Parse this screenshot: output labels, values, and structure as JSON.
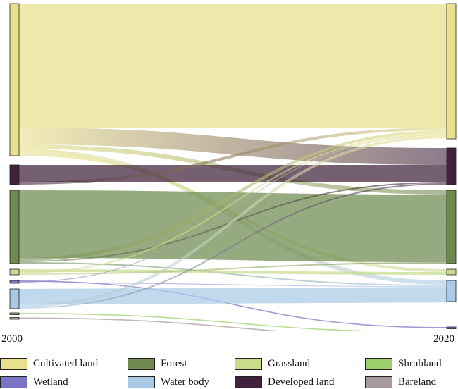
{
  "years": {
    "left": "2000",
    "right": "2020"
  },
  "colors": {
    "cultivated": "#e8e08a",
    "forest": "#6e8a4e",
    "grassland": "#c8dc8c",
    "shrubland": "#9cd06c",
    "wetland": "#7b74c4",
    "water": "#a9c9e6",
    "developed": "#40223c",
    "bareland": "#a89a9c"
  },
  "legend": [
    {
      "key": "cultivated",
      "label": "Cultivated land"
    },
    {
      "key": "forest",
      "label": "Forest"
    },
    {
      "key": "grassland",
      "label": "Grassland"
    },
    {
      "key": "shrubland",
      "label": "Shrubland"
    },
    {
      "key": "wetland",
      "label": "Wetland"
    },
    {
      "key": "water",
      "label": "Water body"
    },
    {
      "key": "developed",
      "label": "Developed land"
    },
    {
      "key": "bareland",
      "label": "Bareland"
    }
  ],
  "chart_data": {
    "type": "sankey",
    "nodes_2000": [
      {
        "key": "cultivated",
        "value": 54
      },
      {
        "key": "developed",
        "value": 7
      },
      {
        "key": "forest",
        "value": 26
      },
      {
        "key": "grassland",
        "value": 2
      },
      {
        "key": "wetland",
        "value": 1
      },
      {
        "key": "water",
        "value": 7
      },
      {
        "key": "shrubland",
        "value": 0.4
      },
      {
        "key": "bareland",
        "value": 0.4
      }
    ],
    "nodes_2020": [
      {
        "key": "cultivated",
        "value": 48
      },
      {
        "key": "developed",
        "value": 13
      },
      {
        "key": "forest",
        "value": 26
      },
      {
        "key": "grassland",
        "value": 2
      },
      {
        "key": "water",
        "value": 7.5
      },
      {
        "key": "wetland",
        "value": 0.4
      },
      {
        "key": "shrubland",
        "value": 0.4
      },
      {
        "key": "bareland",
        "value": 0.4
      }
    ],
    "flows": [
      {
        "from": "cultivated",
        "to": "cultivated",
        "value": 44
      },
      {
        "from": "cultivated",
        "to": "developed",
        "value": 6
      },
      {
        "from": "cultivated",
        "to": "forest",
        "value": 1.5
      },
      {
        "from": "cultivated",
        "to": "water",
        "value": 1.5
      },
      {
        "from": "cultivated",
        "to": "grassland",
        "value": 1
      },
      {
        "from": "developed",
        "to": "developed",
        "value": 6
      },
      {
        "from": "developed",
        "to": "cultivated",
        "value": 1
      },
      {
        "from": "forest",
        "to": "forest",
        "value": 24
      },
      {
        "from": "forest",
        "to": "cultivated",
        "value": 1
      },
      {
        "from": "forest",
        "to": "developed",
        "value": 0.5
      },
      {
        "from": "forest",
        "to": "water",
        "value": 0.5
      },
      {
        "from": "grassland",
        "to": "grassland",
        "value": 1
      },
      {
        "from": "grassland",
        "to": "cultivated",
        "value": 0.5
      },
      {
        "from": "grassland",
        "to": "forest",
        "value": 0.5
      },
      {
        "from": "wetland",
        "to": "wetland",
        "value": 0.4
      },
      {
        "from": "wetland",
        "to": "cultivated",
        "value": 0.3
      },
      {
        "from": "wetland",
        "to": "water",
        "value": 0.3
      },
      {
        "from": "water",
        "to": "water",
        "value": 5.5
      },
      {
        "from": "water",
        "to": "cultivated",
        "value": 1
      },
      {
        "from": "water",
        "to": "developed",
        "value": 0.5
      },
      {
        "from": "shrubland",
        "to": "shrubland",
        "value": 0.4
      },
      {
        "from": "bareland",
        "to": "bareland",
        "value": 0.4
      }
    ]
  }
}
